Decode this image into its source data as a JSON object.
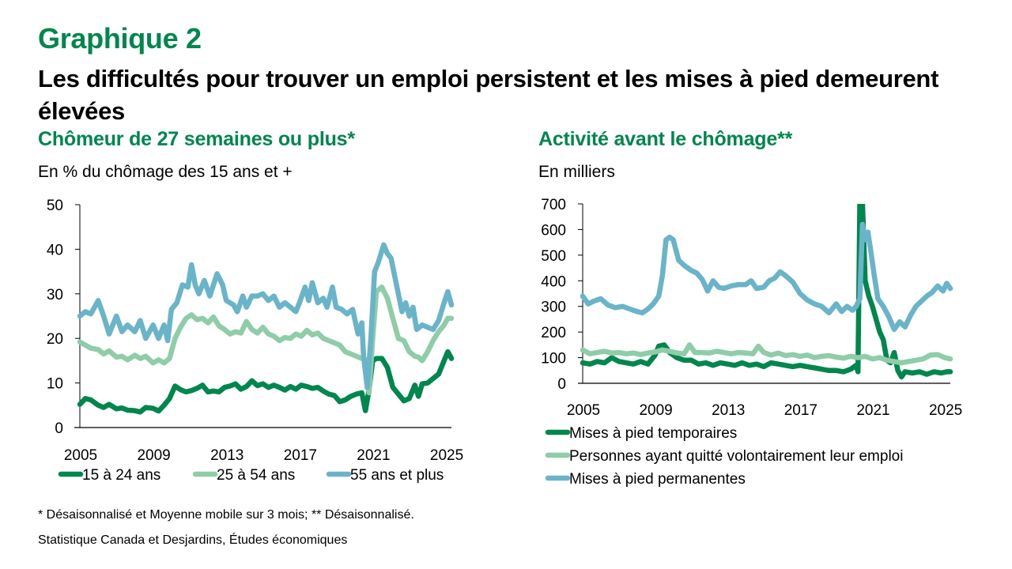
{
  "header": {
    "figure_number": "Graphique 2",
    "title": "Les difficultés pour trouver un emploi persistent et les mises à pied demeurent élevées"
  },
  "footer": {
    "note": "* Désaisonnalisé et Moyenne mobile sur 3 mois; ** Désaisonnalisé.",
    "source": "Statistique Canada et Desjardins, Études économiques"
  },
  "chart_data": [
    {
      "type": "line",
      "title": "Chômeur de 27 semaines ou plus*",
      "ylabel": "En % du chômage des 15 ans et +",
      "xlabel": "",
      "xlim": [
        2005,
        2025.3
      ],
      "ylim": [
        0,
        50
      ],
      "x_ticks": [
        "2005",
        "2009",
        "2013",
        "2017",
        "2021",
        "2025"
      ],
      "y_ticks": [
        "0",
        "10",
        "20",
        "30",
        "40",
        "50"
      ],
      "grid": false,
      "legend_position": "bottom",
      "series": [
        {
          "name": "15 à 24 ans",
          "color": "#00874E",
          "x": [
            2005,
            2005.3,
            2005.6,
            2006,
            2006.3,
            2006.6,
            2007,
            2007.3,
            2007.6,
            2008,
            2008.3,
            2008.6,
            2009,
            2009.3,
            2009.6,
            2009.9,
            2010.2,
            2010.5,
            2010.8,
            2011.1,
            2011.4,
            2011.7,
            2012,
            2012.3,
            2012.6,
            2012.9,
            2013.2,
            2013.5,
            2013.8,
            2014.1,
            2014.4,
            2014.7,
            2015,
            2015.3,
            2015.6,
            2015.9,
            2016.2,
            2016.5,
            2016.8,
            2017.1,
            2017.4,
            2017.7,
            2018,
            2018.3,
            2018.6,
            2018.9,
            2019.2,
            2019.5,
            2019.8,
            2020.1,
            2020.4,
            2020.6,
            2020.8,
            2021,
            2021.2,
            2021.5,
            2021.8,
            2022.1,
            2022.4,
            2022.7,
            2023,
            2023.3,
            2023.5,
            2023.7,
            2024,
            2024.3,
            2024.6,
            2024.9,
            2025.1,
            2025.3
          ],
          "values": [
            5.2,
            6.5,
            6.2,
            5.0,
            4.5,
            5.2,
            4.2,
            4.4,
            3.9,
            3.8,
            3.5,
            4.5,
            4.3,
            3.7,
            5.0,
            6.5,
            9.3,
            8.5,
            8.0,
            8.3,
            8.8,
            9.5,
            8.0,
            8.2,
            8.0,
            9.0,
            9.3,
            9.8,
            8.6,
            9.2,
            10.5,
            9.4,
            9.8,
            9.0,
            9.5,
            9.0,
            8.4,
            9.2,
            8.6,
            9.5,
            9.2,
            8.8,
            9.0,
            8.2,
            7.5,
            7.2,
            5.8,
            6.2,
            7.0,
            7.5,
            7.8,
            3.8,
            8.5,
            15.0,
            15.5,
            15.5,
            13.5,
            9.0,
            7.5,
            6.0,
            6.5,
            9.5,
            7.0,
            9.8,
            10.0,
            11.0,
            12.0,
            15.0,
            17.0,
            15.5
          ]
        },
        {
          "name": "25 à 54 ans",
          "color": "#8FCCA8",
          "x": [
            2005,
            2005.3,
            2005.6,
            2006,
            2006.3,
            2006.6,
            2007,
            2007.3,
            2007.6,
            2008,
            2008.3,
            2008.6,
            2009,
            2009.3,
            2009.6,
            2009.9,
            2010.2,
            2010.5,
            2010.8,
            2011.1,
            2011.4,
            2011.7,
            2012,
            2012.3,
            2012.6,
            2012.9,
            2013.2,
            2013.5,
            2013.8,
            2014.1,
            2014.4,
            2014.7,
            2015,
            2015.3,
            2015.6,
            2015.9,
            2016.2,
            2016.5,
            2016.8,
            2017.1,
            2017.4,
            2017.7,
            2018,
            2018.3,
            2018.6,
            2018.9,
            2019.2,
            2019.5,
            2019.8,
            2020.1,
            2020.4,
            2020.6,
            2020.8,
            2021,
            2021.2,
            2021.5,
            2021.8,
            2022.1,
            2022.4,
            2022.7,
            2023,
            2023.3,
            2023.5,
            2023.7,
            2024,
            2024.3,
            2024.6,
            2024.9,
            2025.1,
            2025.3
          ],
          "values": [
            19.2,
            18.5,
            17.8,
            17.5,
            16.5,
            17.2,
            15.8,
            16.0,
            15.2,
            16.2,
            15.5,
            16.0,
            14.5,
            15.2,
            14.5,
            15.5,
            20.0,
            22.5,
            24.5,
            25.3,
            24.2,
            24.5,
            23.5,
            24.8,
            22.8,
            22.0,
            21.0,
            21.5,
            21.2,
            23.8,
            22.0,
            21.2,
            22.5,
            21.0,
            20.5,
            19.5,
            20.2,
            20.0,
            21.0,
            20.5,
            21.8,
            20.8,
            21.2,
            20.0,
            19.5,
            19.0,
            18.5,
            17.0,
            16.5,
            16.0,
            15.5,
            15.2,
            7.8,
            20.0,
            30.5,
            31.5,
            29.0,
            24.5,
            20.0,
            19.5,
            17.0,
            16.0,
            15.8,
            15.0,
            17.0,
            19.5,
            21.5,
            23.0,
            24.5,
            24.5
          ]
        },
        {
          "name": "55 ans et plus",
          "color": "#69B4C8",
          "x": [
            2005,
            2005.3,
            2005.6,
            2006,
            2006.3,
            2006.6,
            2007,
            2007.3,
            2007.6,
            2008,
            2008.3,
            2008.6,
            2009,
            2009.3,
            2009.6,
            2009.8,
            2010,
            2010.3,
            2010.6,
            2010.9,
            2011.1,
            2011.3,
            2011.5,
            2011.8,
            2012.1,
            2012.5,
            2012.8,
            2013,
            2013.4,
            2013.6,
            2013.9,
            2014.1,
            2014.4,
            2014.7,
            2015,
            2015.3,
            2015.6,
            2015.9,
            2016.2,
            2016.5,
            2016.8,
            2017,
            2017.3,
            2017.5,
            2017.7,
            2018,
            2018.3,
            2018.5,
            2018.8,
            2019,
            2019.3,
            2019.6,
            2019.9,
            2020.2,
            2020.4,
            2020.5,
            2020.7,
            2020.9,
            2021.1,
            2021.3,
            2021.6,
            2021.8,
            2022,
            2022.3,
            2022.6,
            2022.8,
            2023,
            2023.2,
            2023.4,
            2023.7,
            2024,
            2024.3,
            2024.6,
            2024.9,
            2025.1,
            2025.3
          ],
          "values": [
            25,
            26,
            25.5,
            28.5,
            25,
            21,
            25,
            21.5,
            23,
            21.5,
            24,
            20,
            23,
            20,
            23,
            19.5,
            26.5,
            28,
            32,
            31.5,
            36.5,
            32,
            30,
            33,
            29.5,
            34.5,
            32,
            28.5,
            27.5,
            26,
            29.5,
            27,
            29.5,
            29.5,
            30,
            28.5,
            29.5,
            27,
            28,
            27,
            26,
            28,
            31.5,
            28.5,
            32.5,
            28,
            29,
            27,
            31.5,
            27,
            26.5,
            25.5,
            26.5,
            21,
            23.5,
            16,
            9,
            20,
            35,
            37,
            41,
            39,
            38,
            32,
            26,
            28,
            25,
            27,
            22,
            23,
            22.5,
            22,
            24,
            28,
            30.5,
            27.5
          ]
        }
      ]
    },
    {
      "type": "line",
      "title": "Activité avant le chômage**",
      "ylabel": "En milliers",
      "xlabel": "",
      "xlim": [
        2005,
        2025.3
      ],
      "ylim": [
        0,
        700
      ],
      "x_ticks": [
        "2005",
        "2009",
        "2013",
        "2017",
        "2021",
        "2025"
      ],
      "y_ticks": [
        "0",
        "100",
        "200",
        "300",
        "400",
        "500",
        "600",
        "700"
      ],
      "grid": false,
      "legend_position": "bottom",
      "series": [
        {
          "name": "Mises à pied temporaires",
          "color": "#00874E",
          "x": [
            2005,
            2005.4,
            2005.8,
            2006.2,
            2006.6,
            2007,
            2007.4,
            2007.8,
            2008.2,
            2008.6,
            2009,
            2009.2,
            2009.5,
            2009.8,
            2010.2,
            2010.6,
            2011,
            2011.4,
            2011.8,
            2012.2,
            2012.6,
            2013,
            2013.4,
            2013.8,
            2014.2,
            2014.6,
            2015,
            2015.4,
            2015.8,
            2016.2,
            2016.6,
            2017,
            2017.4,
            2017.8,
            2018.2,
            2018.6,
            2019,
            2019.4,
            2019.8,
            2020.1,
            2020.2,
            2020.3,
            2020.45,
            2020.6,
            2020.8,
            2021,
            2021.2,
            2021.4,
            2021.6,
            2021.8,
            2022,
            2022.2,
            2022.4,
            2022.6,
            2022.8,
            2023.2,
            2023.6,
            2024,
            2024.4,
            2024.8,
            2025.1,
            2025.3
          ],
          "values": [
            80,
            75,
            85,
            80,
            100,
            85,
            80,
            75,
            85,
            75,
            110,
            145,
            150,
            120,
            100,
            90,
            90,
            75,
            80,
            70,
            80,
            75,
            70,
            80,
            70,
            75,
            65,
            80,
            75,
            70,
            65,
            70,
            65,
            60,
            55,
            50,
            50,
            45,
            55,
            70,
            45,
            700,
            700,
            400,
            340,
            300,
            250,
            200,
            170,
            90,
            80,
            120,
            50,
            25,
            45,
            40,
            45,
            35,
            45,
            40,
            45,
            45
          ]
        },
        {
          "name": "Personnes ayant quitté volontairement leur emploi",
          "color": "#8FCCA8",
          "x": [
            2005,
            2005.4,
            2005.8,
            2006.2,
            2006.6,
            2007,
            2007.4,
            2007.8,
            2008.2,
            2008.6,
            2009,
            2009.4,
            2009.8,
            2010.2,
            2010.6,
            2010.9,
            2011.2,
            2011.6,
            2012,
            2012.4,
            2012.8,
            2013.2,
            2013.6,
            2014,
            2014.4,
            2014.7,
            2015,
            2015.4,
            2015.8,
            2016.2,
            2016.6,
            2017,
            2017.4,
            2017.8,
            2018.2,
            2018.6,
            2019,
            2019.4,
            2019.8,
            2020.2,
            2020.6,
            2021,
            2021.4,
            2021.8,
            2022.2,
            2022.6,
            2023,
            2023.4,
            2023.8,
            2024.2,
            2024.6,
            2025,
            2025.3
          ],
          "values": [
            130,
            115,
            120,
            125,
            118,
            120,
            115,
            118,
            112,
            118,
            122,
            130,
            125,
            118,
            115,
            150,
            120,
            120,
            118,
            125,
            120,
            115,
            120,
            118,
            115,
            145,
            120,
            110,
            118,
            108,
            112,
            105,
            110,
            100,
            105,
            108,
            102,
            98,
            105,
            100,
            105,
            95,
            100,
            90,
            85,
            80,
            85,
            90,
            95,
            110,
            112,
            100,
            95
          ]
        },
        {
          "name": "Mises à pied permanentes",
          "color": "#69B4C8",
          "x": [
            2005,
            2005.3,
            2005.6,
            2006,
            2006.4,
            2006.8,
            2007.2,
            2007.6,
            2008,
            2008.3,
            2008.6,
            2008.9,
            2009.2,
            2009.4,
            2009.6,
            2009.8,
            2010,
            2010.3,
            2010.6,
            2011,
            2011.3,
            2011.6,
            2011.9,
            2012.2,
            2012.5,
            2012.8,
            2013.2,
            2013.6,
            2014,
            2014.3,
            2014.6,
            2015,
            2015.3,
            2015.6,
            2015.9,
            2016.2,
            2016.6,
            2017,
            2017.4,
            2017.8,
            2018.2,
            2018.6,
            2019,
            2019.3,
            2019.6,
            2019.9,
            2020.1,
            2020.3,
            2020.45,
            2020.6,
            2020.75,
            2020.9,
            2021.1,
            2021.3,
            2021.6,
            2021.9,
            2022.2,
            2022.5,
            2022.8,
            2023.1,
            2023.4,
            2023.7,
            2024,
            2024.3,
            2024.6,
            2024.9,
            2025.1,
            2025.3
          ],
          "values": [
            340,
            310,
            320,
            330,
            305,
            295,
            300,
            290,
            280,
            275,
            290,
            310,
            340,
            420,
            560,
            570,
            560,
            480,
            460,
            440,
            430,
            405,
            360,
            400,
            375,
            370,
            380,
            385,
            385,
            400,
            370,
            375,
            400,
            410,
            435,
            420,
            395,
            350,
            325,
            310,
            300,
            275,
            310,
            280,
            300,
            285,
            300,
            330,
            620,
            560,
            590,
            520,
            420,
            330,
            300,
            260,
            210,
            240,
            220,
            265,
            300,
            320,
            340,
            355,
            380,
            360,
            390,
            370
          ]
        }
      ]
    }
  ]
}
